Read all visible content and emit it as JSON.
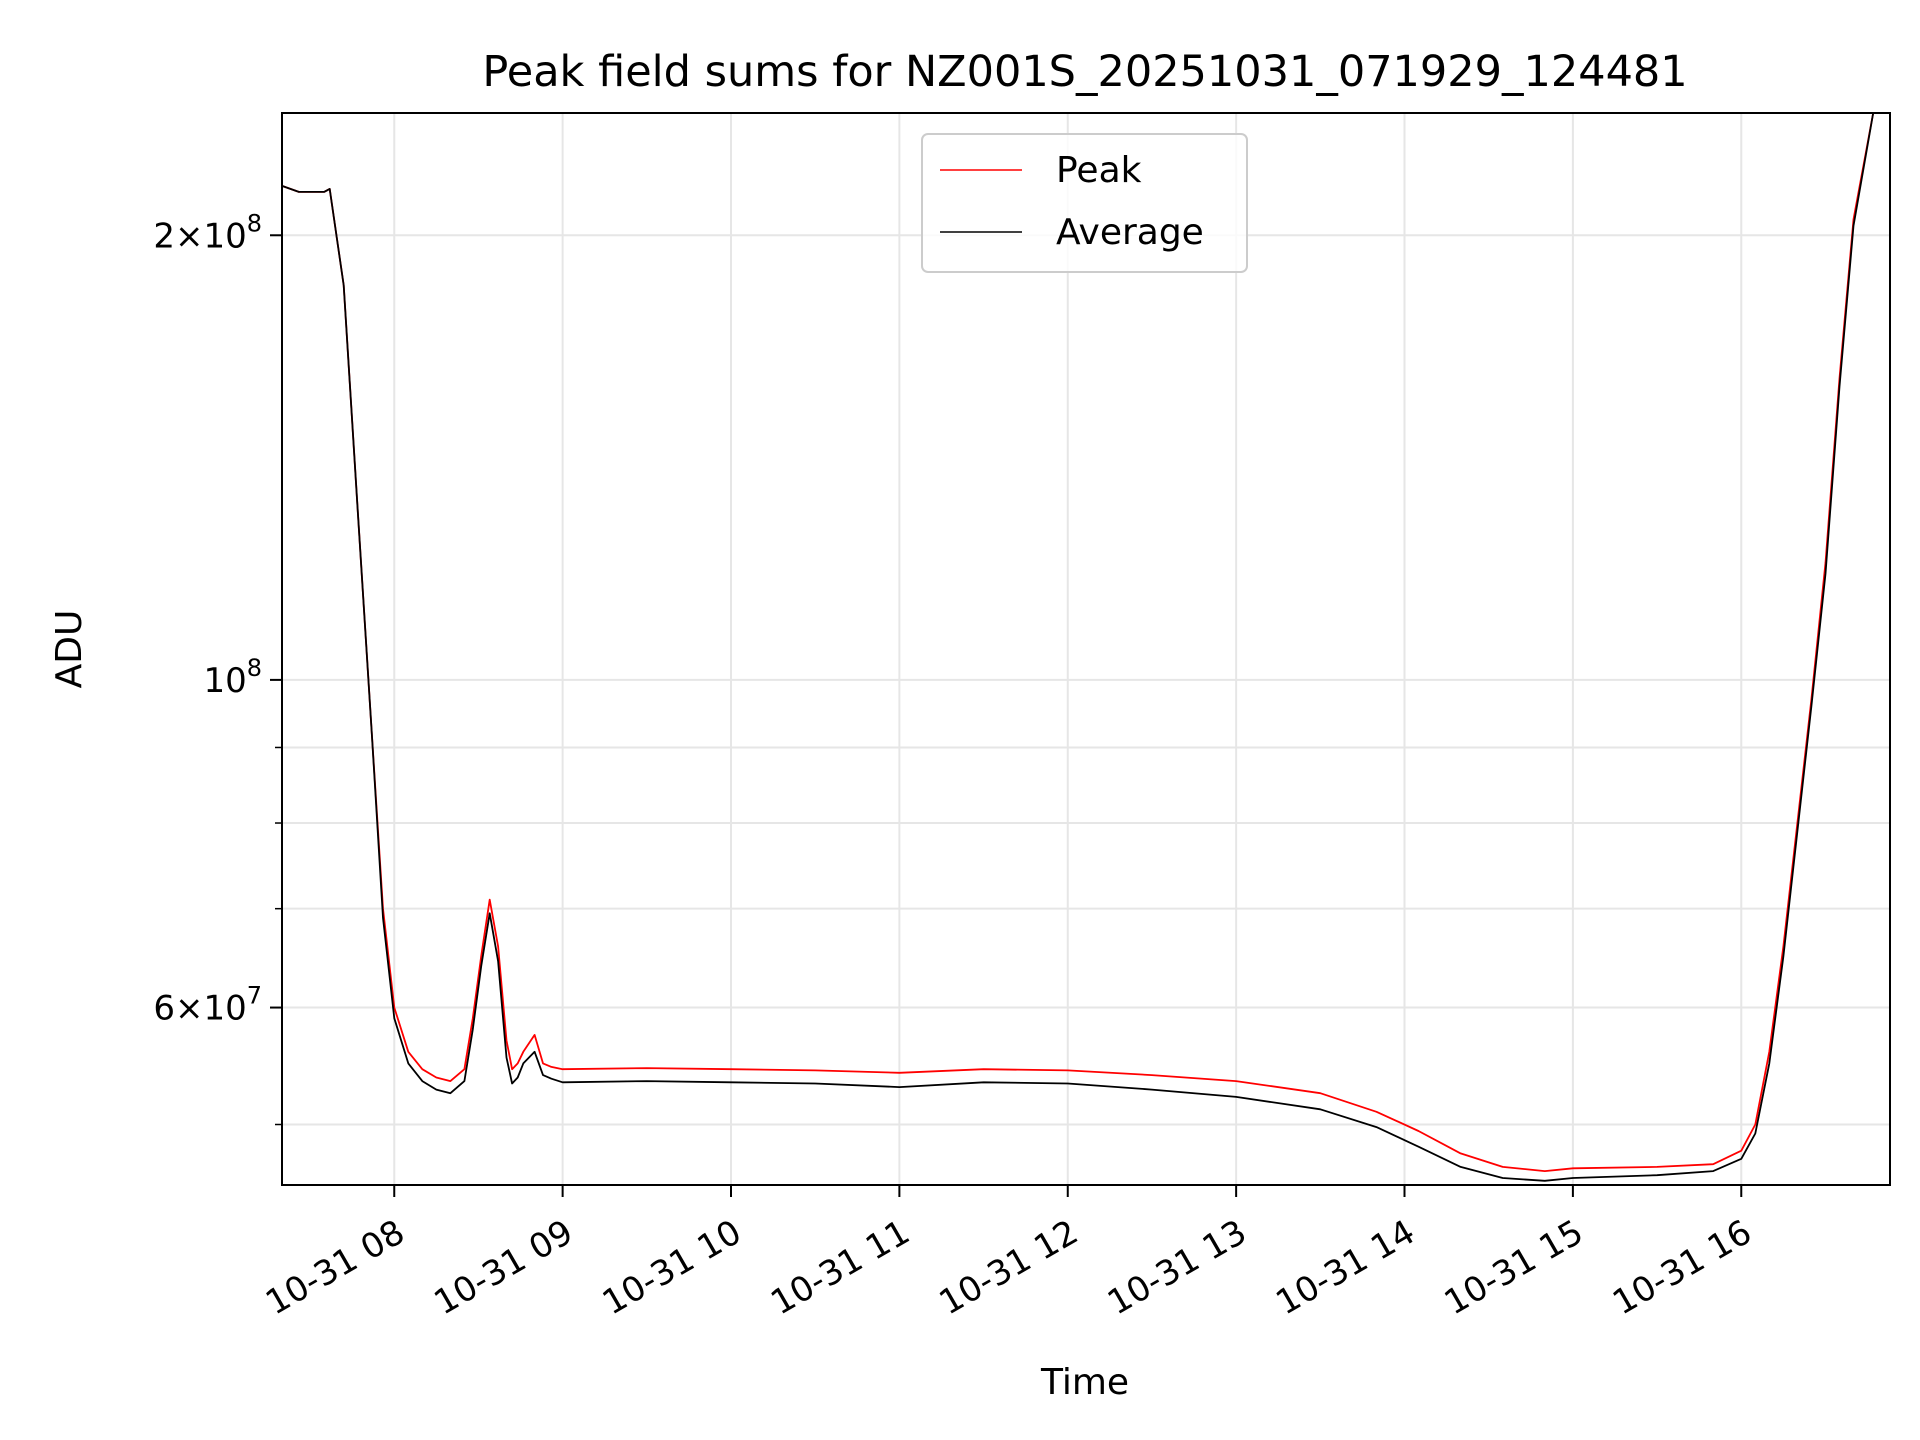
{
  "chart_data": {
    "type": "line",
    "title": "Peak field sums for NZ001S_20251031_071929_124481",
    "xlabel": "Time",
    "ylabel": "ADU",
    "yscale": "log",
    "xlim": [
      "2025-10-31 07:20",
      "2025-10-31 16:53"
    ],
    "ylim": [
      45500000,
      242000000
    ],
    "grid": true,
    "legend": {
      "placement": "upper-center"
    },
    "x_ticks": [
      {
        "value": "2025-10-31 08:00",
        "label": "10-31 08"
      },
      {
        "value": "2025-10-31 09:00",
        "label": "10-31 09"
      },
      {
        "value": "2025-10-31 10:00",
        "label": "10-31 10"
      },
      {
        "value": "2025-10-31 11:00",
        "label": "10-31 11"
      },
      {
        "value": "2025-10-31 12:00",
        "label": "10-31 12"
      },
      {
        "value": "2025-10-31 13:00",
        "label": "10-31 13"
      },
      {
        "value": "2025-10-31 14:00",
        "label": "10-31 14"
      },
      {
        "value": "2025-10-31 15:00",
        "label": "10-31 15"
      },
      {
        "value": "2025-10-31 16:00",
        "label": "10-31 16"
      }
    ],
    "y_major_ticks": [
      {
        "value": 60000000,
        "mantissa": "6",
        "exponent": "7"
      },
      {
        "value": 100000000,
        "mantissa": "",
        "exponent": "8"
      },
      {
        "value": 200000000,
        "mantissa": "2",
        "exponent": "8"
      }
    ],
    "y_minor_ticks": [
      50000000,
      70000000,
      80000000,
      90000000
    ],
    "series": [
      {
        "name": "Peak",
        "color": "#ff0000",
        "x": [
          "2025-10-31 07:20",
          "2025-10-31 07:26",
          "2025-10-31 07:35",
          "2025-10-31 07:37",
          "2025-10-31 07:42",
          "2025-10-31 07:47",
          "2025-10-31 07:52",
          "2025-10-31 07:56",
          "2025-10-31 08:00",
          "2025-10-31 08:05",
          "2025-10-31 08:10",
          "2025-10-31 08:15",
          "2025-10-31 08:20",
          "2025-10-31 08:25",
          "2025-10-31 08:28",
          "2025-10-31 08:31",
          "2025-10-31 08:34",
          "2025-10-31 08:37",
          "2025-10-31 08:40",
          "2025-10-31 08:42",
          "2025-10-31 08:44",
          "2025-10-31 08:46",
          "2025-10-31 08:50",
          "2025-10-31 08:53",
          "2025-10-31 08:56",
          "2025-10-31 09:00",
          "2025-10-31 09:30",
          "2025-10-31 10:00",
          "2025-10-31 10:30",
          "2025-10-31 11:00",
          "2025-10-31 11:30",
          "2025-10-31 12:00",
          "2025-10-31 12:30",
          "2025-10-31 13:00",
          "2025-10-31 13:30",
          "2025-10-31 13:50",
          "2025-10-31 14:05",
          "2025-10-31 14:20",
          "2025-10-31 14:35",
          "2025-10-31 14:50",
          "2025-10-31 15:00",
          "2025-10-31 15:30",
          "2025-10-31 15:50",
          "2025-10-31 16:00",
          "2025-10-31 16:05",
          "2025-10-31 16:10",
          "2025-10-31 16:15",
          "2025-10-31 16:20",
          "2025-10-31 16:25",
          "2025-10-31 16:30",
          "2025-10-31 16:35",
          "2025-10-31 16:40",
          "2025-10-31 16:47",
          "2025-10-31 16:53"
        ],
        "y": [
          216000000,
          214000000,
          214000000,
          215000000,
          185000000,
          130000000,
          92000000,
          70000000,
          60000000,
          56000000,
          54500000,
          53800000,
          53500000,
          54500000,
          59000000,
          65000000,
          71000000,
          66000000,
          57000000,
          54500000,
          55000000,
          56000000,
          57500000,
          55000000,
          54700000,
          54500000,
          54600000,
          54500000,
          54400000,
          54200000,
          54500000,
          54400000,
          54000000,
          53500000,
          52500000,
          51000000,
          49500000,
          47800000,
          46800000,
          46500000,
          46700000,
          46800000,
          47000000,
          48000000,
          50000000,
          56000000,
          66000000,
          80000000,
          97000000,
          120000000,
          160000000,
          205000000,
          242000000,
          242000000
        ]
      },
      {
        "name": "Average",
        "color": "#000000",
        "x": [
          "2025-10-31 07:20",
          "2025-10-31 07:26",
          "2025-10-31 07:35",
          "2025-10-31 07:37",
          "2025-10-31 07:42",
          "2025-10-31 07:47",
          "2025-10-31 07:52",
          "2025-10-31 07:56",
          "2025-10-31 08:00",
          "2025-10-31 08:05",
          "2025-10-31 08:10",
          "2025-10-31 08:15",
          "2025-10-31 08:20",
          "2025-10-31 08:25",
          "2025-10-31 08:28",
          "2025-10-31 08:31",
          "2025-10-31 08:34",
          "2025-10-31 08:37",
          "2025-10-31 08:40",
          "2025-10-31 08:42",
          "2025-10-31 08:44",
          "2025-10-31 08:46",
          "2025-10-31 08:50",
          "2025-10-31 08:53",
          "2025-10-31 08:56",
          "2025-10-31 09:00",
          "2025-10-31 09:30",
          "2025-10-31 10:00",
          "2025-10-31 10:30",
          "2025-10-31 11:00",
          "2025-10-31 11:30",
          "2025-10-31 12:00",
          "2025-10-31 12:30",
          "2025-10-31 13:00",
          "2025-10-31 13:30",
          "2025-10-31 13:50",
          "2025-10-31 14:05",
          "2025-10-31 14:20",
          "2025-10-31 14:35",
          "2025-10-31 14:50",
          "2025-10-31 15:00",
          "2025-10-31 15:30",
          "2025-10-31 15:50",
          "2025-10-31 16:00",
          "2025-10-31 16:05",
          "2025-10-31 16:10",
          "2025-10-31 16:15",
          "2025-10-31 16:20",
          "2025-10-31 16:25",
          "2025-10-31 16:30",
          "2025-10-31 16:35",
          "2025-10-31 16:40",
          "2025-10-31 16:47",
          "2025-10-31 16:53"
        ],
        "y": [
          216000000,
          214000000,
          214000000,
          215000000,
          185000000,
          130000000,
          92000000,
          69000000,
          59000000,
          55000000,
          53500000,
          52800000,
          52500000,
          53500000,
          58000000,
          64000000,
          69500000,
          64500000,
          55500000,
          53300000,
          53800000,
          55000000,
          56000000,
          54000000,
          53700000,
          53400000,
          53500000,
          53400000,
          53300000,
          53000000,
          53400000,
          53300000,
          52800000,
          52200000,
          51200000,
          49800000,
          48300000,
          46800000,
          46000000,
          45800000,
          46000000,
          46200000,
          46500000,
          47400000,
          49300000,
          55000000,
          65000000,
          79000000,
          96000000,
          118000000,
          158000000,
          203000000,
          242000000,
          242000000
        ]
      }
    ]
  }
}
